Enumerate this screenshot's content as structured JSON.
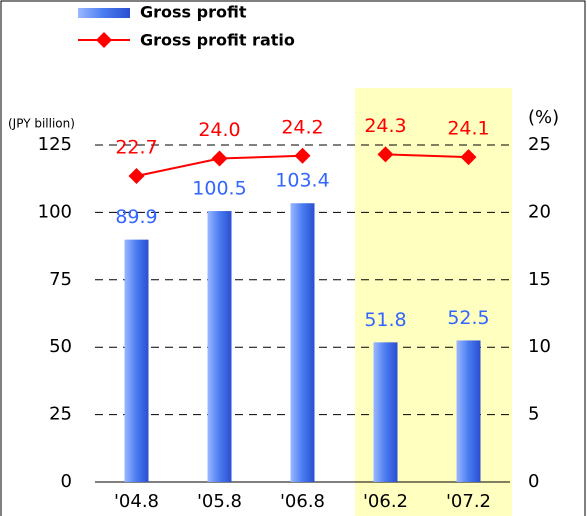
{
  "chart_data": {
    "type": "bar_line",
    "y_label": "(JPY billion)",
    "y2_label": "(%)",
    "categories": [
      "'04.8",
      "'05.8",
      "'06.8",
      "'06.2",
      "'07.2"
    ],
    "series": [
      {
        "name": "Gross profit",
        "type": "bar",
        "color": "#4a7bf0",
        "values": [
          89.9,
          100.5,
          103.4,
          51.8,
          52.5
        ]
      },
      {
        "name": "Gross profit ratio",
        "type": "line",
        "axis": "y2",
        "color": "#ff0000",
        "values": [
          22.7,
          24.0,
          24.2,
          24.3,
          24.1
        ],
        "value_labels": [
          "22.7",
          "24.0",
          "24.2",
          "24.3",
          "24.1"
        ]
      }
    ],
    "highlight": [
      3,
      4
    ],
    "highlight_color": "#ffffc0",
    "ylim": [
      0,
      125
    ],
    "yticks": [
      0,
      25,
      50,
      75,
      100,
      125
    ],
    "y2lim": [
      0,
      25
    ],
    "y2ticks": [
      0,
      5,
      10,
      15,
      20,
      25
    ],
    "grid": true
  }
}
